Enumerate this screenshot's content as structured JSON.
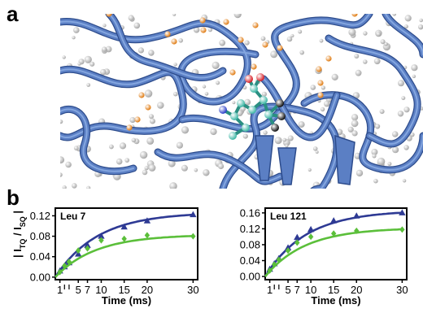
{
  "figure": {
    "panel_a_label": "a",
    "panel_b_label": "b"
  },
  "colors": {
    "ribbon": "#5b7fc4",
    "ribbon_light": "#8fb0e6",
    "water": "#d8d8d8",
    "orange_atom": "#e07a10",
    "carbon": "#3fb7a6",
    "oxygen": "#d81f26",
    "nitrogen": "#2b3fc7",
    "methyl": "#111111",
    "series_tq": "#2e3a94",
    "series_sq": "#5bbf3a"
  },
  "chart_data": [
    {
      "type": "scatter",
      "title": "Leu 7",
      "xlabel": "Time (ms)",
      "ylabel": "| I_TQ / I_SQ |",
      "xlim": [
        0,
        31
      ],
      "ylim": [
        -0.005,
        0.135
      ],
      "xticks": [
        1,
        5,
        7,
        10,
        15,
        20,
        30
      ],
      "yticks": [
        0.0,
        0.04,
        0.08,
        0.12
      ],
      "ytick_labels": [
        "0.00",
        "0.04",
        "0.08",
        "0.12"
      ],
      "series": [
        {
          "color_key": "series_tq",
          "marker": "triangle",
          "x": [
            1,
            2,
            3,
            5,
            7,
            10,
            15,
            20,
            30
          ],
          "y": [
            0.012,
            0.02,
            0.028,
            0.045,
            0.062,
            0.08,
            0.098,
            0.11,
            0.122
          ]
        },
        {
          "color_key": "series_sq",
          "marker": "diamond",
          "x": [
            1,
            2,
            3,
            5,
            7,
            10,
            15,
            20,
            30
          ],
          "y": [
            0.01,
            0.022,
            0.03,
            0.052,
            0.056,
            0.072,
            0.075,
            0.082,
            0.08
          ]
        }
      ]
    },
    {
      "type": "scatter",
      "title": "Leu 121",
      "xlabel": "Time (ms)",
      "ylabel": "",
      "xlim": [
        0,
        31
      ],
      "ylim": [
        -0.008,
        0.172
      ],
      "xticks": [
        1,
        5,
        7,
        10,
        15,
        20,
        30
      ],
      "yticks": [
        0.0,
        0.04,
        0.08,
        0.12,
        0.16
      ],
      "ytick_labels": [
        "0.00",
        "0.04",
        "0.08",
        "0.12",
        "0.16"
      ],
      "series": [
        {
          "color_key": "series_tq",
          "marker": "triangle",
          "x": [
            1,
            2,
            3,
            5,
            7,
            10,
            15,
            20,
            30
          ],
          "y": [
            0.018,
            0.032,
            0.045,
            0.072,
            0.098,
            0.118,
            0.14,
            0.152,
            0.16
          ]
        },
        {
          "color_key": "series_sq",
          "marker": "diamond",
          "x": [
            1,
            2,
            3,
            5,
            7,
            10,
            15,
            20,
            30
          ],
          "y": [
            0.015,
            0.03,
            0.042,
            0.065,
            0.085,
            0.1,
            0.108,
            0.115,
            0.118
          ]
        }
      ]
    }
  ]
}
